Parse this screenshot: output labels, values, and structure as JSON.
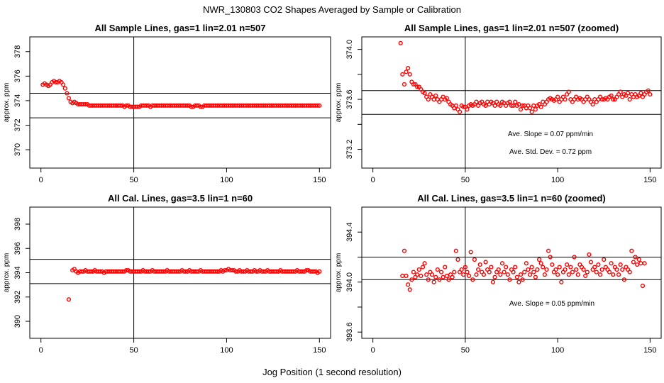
{
  "figure": {
    "title": "NWR_130803  CO2 Shapes Averaged by Sample or Calibration",
    "xlabel": "Jog Position (1 second resolution)"
  },
  "colors": {
    "points": "#ff0000",
    "axes": "#000000",
    "background": "#ffffff"
  },
  "chart_data": [
    {
      "type": "scatter",
      "title": "All Sample Lines, gas=1 lin=2.01 n=507",
      "ylabel": "approx. ppm",
      "xlim": [
        -6,
        156
      ],
      "ylim": [
        368.5,
        379.2
      ],
      "xticks": [
        0,
        50,
        100,
        150
      ],
      "yticks": [
        370,
        372,
        374,
        376,
        378
      ],
      "hlines": [
        374.6,
        372.6
      ],
      "vlines": [
        50
      ],
      "series": [
        {
          "x_start": 1,
          "x_step": 1,
          "values": [
            375.3,
            375.4,
            375.3,
            375.2,
            375.3,
            375.5,
            375.6,
            375.5,
            375.5,
            375.6,
            375.5,
            375.3,
            375.0,
            374.6,
            374.2,
            373.9,
            373.8,
            373.9,
            373.8,
            373.7,
            373.7,
            373.7,
            373.7,
            373.7,
            373.7,
            373.6,
            373.6,
            373.6,
            373.6,
            373.6,
            373.6,
            373.6,
            373.6,
            373.6,
            373.6,
            373.6,
            373.6,
            373.6,
            373.6,
            373.6,
            373.6,
            373.6,
            373.6,
            373.6,
            373.5,
            373.6,
            373.6,
            373.5,
            373.5,
            373.5,
            373.5,
            373.5,
            373.5,
            373.6,
            373.6,
            373.6,
            373.6,
            373.6,
            373.5,
            373.6,
            373.6,
            373.6,
            373.6,
            373.6,
            373.6,
            373.6,
            373.6,
            373.6,
            373.6,
            373.6,
            373.6,
            373.6,
            373.6,
            373.6,
            373.6,
            373.6,
            373.6,
            373.6,
            373.6,
            373.6,
            373.5,
            373.5,
            373.6,
            373.6,
            373.6,
            373.5,
            373.5,
            373.6,
            373.6,
            373.6,
            373.6,
            373.6,
            373.6,
            373.6,
            373.6,
            373.6,
            373.6,
            373.6,
            373.6,
            373.6,
            373.6,
            373.6,
            373.6,
            373.6,
            373.6,
            373.6,
            373.6,
            373.6,
            373.6,
            373.6,
            373.6,
            373.6,
            373.6,
            373.6,
            373.6,
            373.6,
            373.6,
            373.6,
            373.6,
            373.6,
            373.6,
            373.6,
            373.6,
            373.6,
            373.6,
            373.6,
            373.6,
            373.6,
            373.6,
            373.6,
            373.6,
            373.6,
            373.6,
            373.6,
            373.6,
            373.6,
            373.6,
            373.6,
            373.6,
            373.6,
            373.6,
            373.6,
            373.6,
            373.6,
            373.6,
            373.6,
            373.6,
            373.6,
            373.6,
            373.6
          ]
        }
      ]
    },
    {
      "type": "scatter",
      "title": "All Sample Lines, gas=1 lin=2.01 n=507 (zoomed)",
      "ylabel": "approx. ppm",
      "xlim": [
        -6,
        156
      ],
      "ylim": [
        373.05,
        374.1
      ],
      "xticks": [
        0,
        50,
        100,
        150
      ],
      "yticks": [
        373.2,
        373.4,
        373.6,
        373.8,
        374.0
      ],
      "yticklabels_shown": [
        "373.2",
        "373.6",
        "374.0"
      ],
      "hlines": [
        373.67,
        373.48
      ],
      "vlines": [
        50
      ],
      "annotations": [
        "Ave. Slope =  0.07  ppm/min",
        "Ave. Std. Dev. =  0.72  ppm"
      ],
      "series": [
        {
          "x_start": 15,
          "x_step": 1,
          "values": [
            374.05,
            373.8,
            373.72,
            373.82,
            373.85,
            373.8,
            373.74,
            373.72,
            373.72,
            373.7,
            373.7,
            373.68,
            373.66,
            373.65,
            373.62,
            373.6,
            373.64,
            373.62,
            373.6,
            373.63,
            373.6,
            373.58,
            373.6,
            373.62,
            373.6,
            373.61,
            373.58,
            373.56,
            373.55,
            373.53,
            373.55,
            373.52,
            373.5,
            373.55,
            373.54,
            373.54,
            373.52,
            373.55,
            373.56,
            373.55,
            373.56,
            373.58,
            373.55,
            373.57,
            373.58,
            373.56,
            373.55,
            373.58,
            373.56,
            373.58,
            373.57,
            373.55,
            373.58,
            373.56,
            373.55,
            373.58,
            373.57,
            373.55,
            373.57,
            373.58,
            373.55,
            373.55,
            373.58,
            373.55,
            373.56,
            373.52,
            373.55,
            373.55,
            373.53,
            373.55,
            373.53,
            373.5,
            373.55,
            373.52,
            373.55,
            373.56,
            373.54,
            373.58,
            373.56,
            373.58,
            373.6,
            373.61,
            373.6,
            373.59,
            373.6,
            373.62,
            373.58,
            373.6,
            373.62,
            373.6,
            373.64,
            373.66,
            373.6,
            373.58,
            373.6,
            373.62,
            373.6,
            373.61,
            373.6,
            373.58,
            373.6,
            373.62,
            373.6,
            373.58,
            373.56,
            373.6,
            373.58,
            373.6,
            373.62,
            373.6,
            373.6,
            373.61,
            373.6,
            373.62,
            373.63,
            373.6,
            373.6,
            373.62,
            373.64,
            373.66,
            373.62,
            373.64,
            373.63,
            373.65,
            373.6,
            373.64,
            373.62,
            373.64,
            373.62,
            373.63,
            373.65,
            373.62,
            373.64,
            373.66,
            373.67,
            373.64
          ]
        }
      ]
    },
    {
      "type": "scatter",
      "title": "All Cal. Lines, gas=3.5 lin=1 n=60",
      "ylabel": "approx. ppm",
      "xlim": [
        -6,
        156
      ],
      "ylim": [
        388.6,
        399.4
      ],
      "xticks": [
        0,
        50,
        100,
        150
      ],
      "yticks": [
        390,
        392,
        394,
        396,
        398
      ],
      "hlines": [
        395.1,
        393.1
      ],
      "vlines": [
        50
      ],
      "series": [
        {
          "x_start": 15,
          "x_step": 1,
          "values": [
            391.8,
            null,
            394.2,
            394.3,
            394.1,
            394.0,
            394.1,
            394.1,
            394.1,
            394.2,
            394.1,
            394.1,
            394.1,
            394.1,
            394.2,
            394.1,
            394.1,
            394.1,
            394.1,
            394.0,
            394.1,
            394.1,
            394.1,
            394.1,
            394.1,
            394.1,
            394.1,
            394.1,
            394.1,
            394.1,
            394.1,
            394.2,
            394.2,
            394.1,
            394.1,
            394.1,
            394.1,
            394.1,
            394.1,
            394.1,
            394.2,
            394.1,
            394.1,
            394.1,
            394.1,
            394.2,
            394.1,
            394.1,
            394.1,
            394.1,
            394.1,
            394.1,
            394.1,
            394.2,
            394.1,
            394.1,
            394.1,
            394.1,
            394.1,
            394.1,
            394.1,
            394.2,
            394.1,
            394.1,
            394.1,
            394.2,
            394.1,
            394.1,
            394.1,
            394.1,
            394.1,
            394.2,
            394.1,
            394.1,
            394.1,
            394.1,
            394.1,
            394.1,
            394.1,
            394.1,
            394.1,
            394.1,
            394.2,
            394.1,
            394.2,
            394.2,
            394.3,
            394.2,
            394.2,
            394.2,
            394.1,
            394.1,
            394.2,
            394.1,
            394.1,
            394.1,
            394.2,
            394.1,
            394.1,
            394.1,
            394.2,
            394.1,
            394.1,
            394.2,
            394.1,
            394.1,
            394.1,
            394.2,
            394.1,
            394.1,
            394.1,
            394.1,
            394.1,
            394.1,
            394.2,
            394.1,
            394.1,
            394.1,
            394.1,
            394.1,
            394.1,
            394.1,
            394.1,
            394.2,
            394.1,
            394.1,
            394.1,
            394.1,
            394.2,
            394.2,
            394.1,
            394.1,
            394.1,
            394.1,
            394.0,
            394.1
          ]
        }
      ]
    },
    {
      "type": "scatter",
      "title": "All Cal. Lines, gas=3.5 lin=1 n=60 (zoomed)",
      "ylabel": "approx. ppm",
      "xlim": [
        -6,
        156
      ],
      "ylim": [
        393.55,
        394.6
      ],
      "xticks": [
        0,
        50,
        100,
        150
      ],
      "yticks": [
        393.6,
        393.8,
        394.0,
        394.2,
        394.4
      ],
      "yticklabels_shown": [
        "393.6",
        "394.0",
        "394.4"
      ],
      "hlines": [
        394.2,
        394.02
      ],
      "vlines": [
        50
      ],
      "annotations": [
        "Ave. Slope =  0.05  ppm/min"
      ],
      "series": [
        {
          "x_start": 16,
          "x_step": 1,
          "values": [
            394.05,
            394.25,
            394.05,
            393.98,
            393.94,
            394.02,
            394.08,
            394.04,
            394.06,
            394.1,
            394.05,
            394.12,
            394.15,
            394.06,
            394.02,
            394.08,
            394.06,
            394.0,
            394.04,
            394.1,
            394.02,
            394.08,
            394.04,
            394.12,
            394.05,
            394.02,
            394.06,
            394.04,
            394.08,
            394.25,
            394.18,
            394.08,
            394.1,
            394.06,
            394.12,
            394.08,
            394.05,
            394.24,
            394.02,
            394.18,
            394.06,
            394.1,
            394.14,
            394.08,
            394.06,
            394.16,
            394.1,
            394.08,
            394.12,
            394.0,
            394.04,
            394.08,
            394.1,
            394.06,
            394.15,
            394.08,
            394.12,
            394.06,
            394.02,
            394.1,
            394.08,
            394.12,
            394.04,
            394.0,
            394.06,
            394.02,
            394.08,
            394.15,
            394.1,
            394.06,
            394.12,
            394.08,
            394.04,
            394.1,
            394.18,
            394.15,
            394.12,
            394.06,
            394.1,
            394.25,
            394.2,
            394.14,
            394.08,
            394.1,
            394.06,
            394.12,
            394.0,
            394.08,
            394.1,
            394.14,
            394.06,
            394.12,
            394.08,
            394.2,
            394.1,
            394.06,
            394.14,
            394.12,
            394.1,
            394.05,
            394.08,
            394.22,
            394.16,
            394.1,
            394.12,
            394.08,
            394.14,
            394.06,
            394.1,
            394.18,
            394.12,
            394.1,
            394.08,
            394.15,
            394.06,
            394.12,
            394.1,
            394.06,
            394.14,
            394.1,
            394.02,
            394.12,
            394.1,
            394.08,
            394.25,
            394.16,
            394.2,
            394.14,
            394.18,
            394.15,
            393.97,
            394.15
          ]
        }
      ]
    }
  ]
}
